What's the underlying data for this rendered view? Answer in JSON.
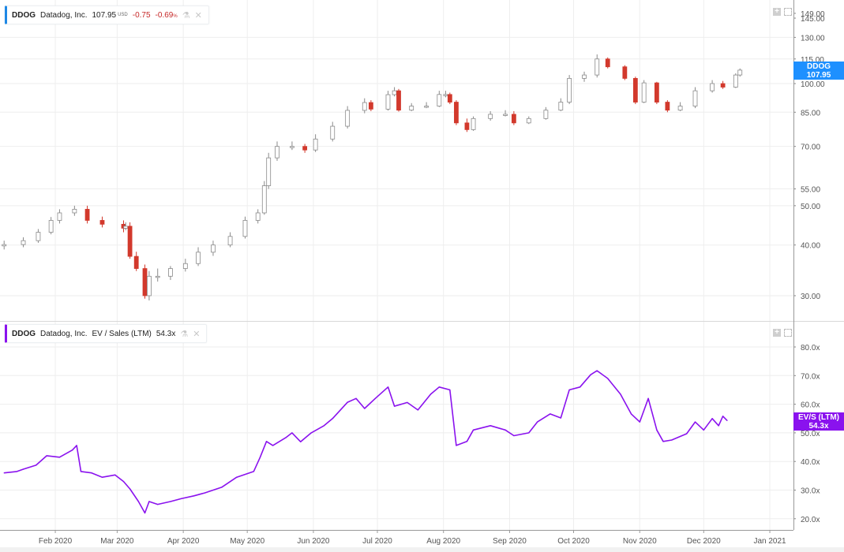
{
  "colors": {
    "price_label": "#1e90ff",
    "ev_line": "#8a12ee",
    "down_candle": "#d2392c",
    "up_candle_border": "#8a8a8a",
    "negative_text": "#c62828"
  },
  "price_legend": {
    "symbol": "DDOG",
    "name": "Datadog, Inc.",
    "price": "107.95",
    "currency": "USD",
    "change": "-0.75",
    "change_pct": "-0.69",
    "pct_sign": "%",
    "icons": [
      "flask-icon",
      "close-icon"
    ]
  },
  "ev_legend": {
    "symbol": "DDOG",
    "name": "Datadog, Inc.",
    "metric": "EV / Sales (LTM)",
    "value": "54.3x",
    "icons": [
      "flask-icon",
      "close-icon"
    ]
  },
  "price_axis_label": {
    "symbol": "DDOG",
    "value": "107.95"
  },
  "ev_axis_label": {
    "title": "EV/S (LTM)",
    "value": "54.3x"
  },
  "chart_data": [
    {
      "type": "candlestick",
      "title": "",
      "scale": "log",
      "ylim": [
        26,
        152
      ],
      "y_ticks": [
        "149.00",
        "145.00",
        "130.00",
        "115.00",
        "100.00",
        "85.00",
        "70.00",
        "55.00",
        "50.00",
        "40.00",
        "30.00"
      ],
      "grid": true,
      "dates": [
        "2020-01-08",
        "2020-01-17",
        "2020-01-24",
        "2020-01-30",
        "2020-02-03",
        "2020-02-10",
        "2020-02-16",
        "2020-02-23",
        "2020-03-04",
        "2020-03-05",
        "2020-03-07",
        "2020-03-10",
        "2020-03-14",
        "2020-03-16",
        "2020-03-20",
        "2020-03-26",
        "2020-04-02",
        "2020-04-08",
        "2020-04-15",
        "2020-04-23",
        "2020-04-30",
        "2020-05-06",
        "2020-05-09",
        "2020-05-11",
        "2020-05-15",
        "2020-05-22",
        "2020-05-28",
        "2020-06-02",
        "2020-06-10",
        "2020-06-17",
        "2020-06-25",
        "2020-06-28",
        "2020-07-06",
        "2020-07-09",
        "2020-07-11",
        "2020-07-17",
        "2020-07-24",
        "2020-07-30",
        "2020-08-02",
        "2020-08-04",
        "2020-08-07",
        "2020-08-12",
        "2020-08-15",
        "2020-08-23",
        "2020-08-30",
        "2020-09-03",
        "2020-09-10",
        "2020-09-18",
        "2020-09-25",
        "2020-09-29",
        "2020-10-06",
        "2020-10-12",
        "2020-10-17",
        "2020-10-25",
        "2020-10-30",
        "2020-11-03",
        "2020-11-09",
        "2020-11-14",
        "2020-11-20",
        "2020-11-27",
        "2020-12-05",
        "2020-12-10",
        "2020-12-16",
        "2020-12-18"
      ],
      "open": [
        39.8,
        40.1,
        41,
        43,
        46,
        48,
        49,
        46,
        45,
        44,
        44.5,
        37.5,
        35,
        30,
        33.5,
        33.5,
        35,
        36,
        38.4,
        40,
        42,
        46,
        48,
        56,
        65.6,
        70,
        70,
        68.6,
        73,
        78.5,
        85.9,
        89.8,
        86.5,
        93.9,
        96,
        86,
        88,
        88,
        94,
        94,
        90,
        80,
        77,
        82,
        84,
        84,
        80,
        82,
        86,
        90,
        103,
        105,
        115,
        110,
        103,
        90,
        100.4,
        90,
        86,
        88,
        96,
        100,
        98,
        105
      ],
      "high": [
        41,
        41.8,
        43.8,
        46.9,
        49,
        50,
        50,
        47,
        46,
        45.5,
        45.5,
        38.5,
        35.8,
        34.5,
        35,
        35.5,
        37,
        39.5,
        41,
        43,
        47,
        49,
        57.5,
        67.5,
        72,
        72,
        71,
        75,
        80.5,
        88,
        92,
        91,
        96,
        98,
        97,
        89.5,
        90,
        96,
        96,
        95,
        91,
        82,
        83,
        85.5,
        86,
        85.5,
        83,
        87.5,
        92,
        105,
        107,
        118,
        116,
        111,
        104,
        102,
        101,
        91,
        90,
        98,
        102,
        101.5,
        106,
        109
      ],
      "low": [
        39,
        39.5,
        40.5,
        42.5,
        45.2,
        47.2,
        45.2,
        44.2,
        43,
        43.5,
        37,
        34.5,
        29.5,
        29.2,
        32.5,
        32.8,
        34.4,
        35.5,
        37.6,
        39.5,
        41.5,
        45.2,
        47.5,
        55,
        64.5,
        68.6,
        67.5,
        67.8,
        72,
        77.5,
        84.5,
        85.5,
        85.8,
        93,
        85.3,
        85.5,
        87,
        87.5,
        92.5,
        89,
        79,
        76,
        76.5,
        81,
        83,
        79,
        79.5,
        81.5,
        85.5,
        89,
        101,
        103.5,
        109,
        102,
        89,
        89.5,
        89,
        85,
        85.5,
        87,
        95,
        97,
        97.5,
        104
      ],
      "close": [
        40.1,
        41,
        43,
        46,
        48,
        49,
        46,
        45,
        44,
        44.5,
        37.5,
        35,
        30,
        33.5,
        33.5,
        35,
        36,
        38.4,
        40,
        42,
        46,
        48,
        56,
        65.6,
        70,
        70,
        68.6,
        73,
        78.5,
        85.9,
        89.8,
        86.5,
        93.9,
        96,
        86,
        88,
        88,
        94,
        94,
        90,
        80,
        77,
        82,
        84,
        84,
        80,
        82,
        86,
        90,
        103,
        105,
        115,
        110,
        103,
        90,
        100.4,
        90,
        86,
        88,
        96,
        100,
        98,
        105,
        107.95
      ]
    },
    {
      "type": "line",
      "title": "",
      "series": [
        {
          "name": "EV / Sales (LTM)",
          "color": "#8a12ee"
        }
      ],
      "ylim": [
        17,
        84
      ],
      "y_ticks": [
        "80.0x",
        "70.0x",
        "60.0x",
        "50.0x",
        "40.0x",
        "30.0x",
        "20.0x"
      ],
      "grid": true,
      "dates": [
        "2020-01-08",
        "2020-01-14",
        "2020-01-17",
        "2020-01-23",
        "2020-01-28",
        "2020-02-03",
        "2020-02-09",
        "2020-02-11",
        "2020-02-13",
        "2020-02-18",
        "2020-02-23",
        "2020-02-29",
        "2020-03-04",
        "2020-03-07",
        "2020-03-11",
        "2020-03-14",
        "2020-03-16",
        "2020-03-20",
        "2020-03-26",
        "2020-03-31",
        "2020-04-06",
        "2020-04-11",
        "2020-04-19",
        "2020-04-26",
        "2020-05-04",
        "2020-05-07",
        "2020-05-10",
        "2020-05-13",
        "2020-05-19",
        "2020-05-22",
        "2020-05-26",
        "2020-05-31",
        "2020-06-06",
        "2020-06-10",
        "2020-06-17",
        "2020-06-21",
        "2020-06-25",
        "2020-06-30",
        "2020-07-06",
        "2020-07-09",
        "2020-07-15",
        "2020-07-20",
        "2020-07-26",
        "2020-07-30",
        "2020-08-04",
        "2020-08-07",
        "2020-08-12",
        "2020-08-15",
        "2020-08-23",
        "2020-08-30",
        "2020-09-03",
        "2020-09-10",
        "2020-09-14",
        "2020-09-20",
        "2020-09-25",
        "2020-09-29",
        "2020-10-04",
        "2020-10-09",
        "2020-10-12",
        "2020-10-17",
        "2020-10-23",
        "2020-10-28",
        "2020-11-01",
        "2020-11-05",
        "2020-11-09",
        "2020-11-12",
        "2020-11-16",
        "2020-11-23",
        "2020-11-27",
        "2020-12-01",
        "2020-12-05",
        "2020-12-08",
        "2020-12-10",
        "2020-12-12"
      ],
      "values": [
        36,
        36.5,
        37.3,
        38.7,
        42,
        41.5,
        44,
        45.6,
        36.5,
        36,
        34.5,
        35.3,
        33,
        30.4,
        26,
        22,
        26,
        25,
        26,
        27,
        28,
        29,
        31,
        34.5,
        36.5,
        41.4,
        47,
        45.6,
        48.3,
        50,
        46.9,
        50,
        52.5,
        55,
        60.7,
        62,
        58.5,
        62,
        66,
        59.3,
        60.6,
        58,
        63.5,
        66,
        65,
        45.6,
        47,
        51,
        52.5,
        51,
        49,
        50,
        53.8,
        56.6,
        55.2,
        65,
        66,
        70.3,
        71.7,
        69,
        63.5,
        56.6,
        53.8,
        62,
        51,
        47,
        47.5,
        49.7,
        53.8,
        51,
        55,
        52.5,
        55.8,
        54.3
      ]
    }
  ],
  "x_axis": {
    "ticks": [
      {
        "label": "Feb 2020",
        "date": "2020-02-01"
      },
      {
        "label": "Mar 2020",
        "date": "2020-03-01"
      },
      {
        "label": "Apr 2020",
        "date": "2020-04-01"
      },
      {
        "label": "May 2020",
        "date": "2020-05-01"
      },
      {
        "label": "Jun 2020",
        "date": "2020-06-01"
      },
      {
        "label": "Jul 2020",
        "date": "2020-07-01"
      },
      {
        "label": "Aug 2020",
        "date": "2020-08-01"
      },
      {
        "label": "Sep 2020",
        "date": "2020-09-01"
      },
      {
        "label": "Oct 2020",
        "date": "2020-10-01"
      },
      {
        "label": "Nov 2020",
        "date": "2020-11-01"
      },
      {
        "label": "Dec 2020",
        "date": "2020-12-01"
      },
      {
        "label": "Jan 2021",
        "date": "2021-01-01"
      }
    ]
  }
}
